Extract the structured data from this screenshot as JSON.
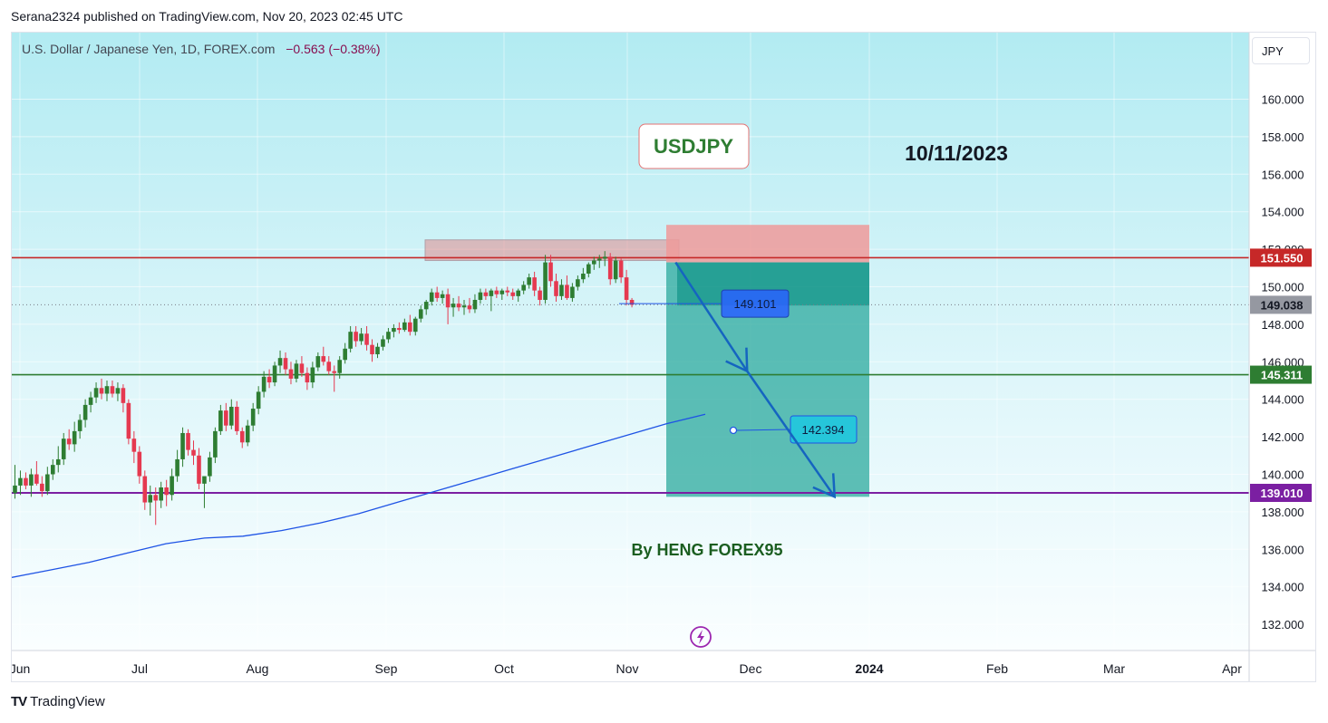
{
  "header": {
    "published_by": "Serana2324 published on TradingView.com, Nov 20, 2023 02:45 UTC"
  },
  "symbol": {
    "description": "U.S. Dollar / Japanese Yen, 1D, FOREX.com",
    "change": "−0.563 (−0.38%)"
  },
  "currency_button": "JPY",
  "footer": {
    "brand": "TradingView"
  },
  "colors": {
    "up_candle": "#2e7d32",
    "down_candle": "#e53950",
    "resistance": "#c62828",
    "support": "#2e7d32",
    "target": "#7b1fa2",
    "moving_average": "#1e53e5",
    "arrow": "#1565c0"
  },
  "chart_data": {
    "type": "candlestick",
    "timeframe": "1D",
    "y_axis_ticks": [
      "160.000",
      "158.000",
      "156.000",
      "154.000",
      "152.000",
      "150.000",
      "148.000",
      "146.000",
      "144.000",
      "142.000",
      "140.000",
      "138.000",
      "136.000",
      "134.000",
      "132.000"
    ],
    "ylim": [
      130.5,
      163.0
    ],
    "x_axis_ticks": [
      "Jun",
      "Jul",
      "Aug",
      "Sep",
      "Oct",
      "Nov",
      "Dec",
      "2024",
      "Feb",
      "Mar",
      "Apr"
    ],
    "candles": [
      {
        "o": 139.0,
        "h": 140.5,
        "l": 138.7,
        "c": 139.4
      },
      {
        "o": 139.4,
        "h": 140.2,
        "l": 138.9,
        "c": 139.8
      },
      {
        "o": 139.8,
        "h": 140.1,
        "l": 139.2,
        "c": 139.4
      },
      {
        "o": 139.4,
        "h": 140.3,
        "l": 138.8,
        "c": 140.0
      },
      {
        "o": 140.0,
        "h": 140.7,
        "l": 139.4,
        "c": 139.5
      },
      {
        "o": 139.5,
        "h": 139.9,
        "l": 138.8,
        "c": 139.1
      },
      {
        "o": 139.1,
        "h": 140.4,
        "l": 138.9,
        "c": 140.0
      },
      {
        "o": 140.0,
        "h": 140.8,
        "l": 139.7,
        "c": 140.5
      },
      {
        "o": 140.5,
        "h": 141.5,
        "l": 140.1,
        "c": 140.8
      },
      {
        "o": 140.8,
        "h": 142.2,
        "l": 140.5,
        "c": 141.9
      },
      {
        "o": 141.9,
        "h": 142.4,
        "l": 141.3,
        "c": 141.6
      },
      {
        "o": 141.6,
        "h": 142.8,
        "l": 141.2,
        "c": 142.3
      },
      {
        "o": 142.3,
        "h": 143.2,
        "l": 141.9,
        "c": 142.9
      },
      {
        "o": 142.9,
        "h": 144.0,
        "l": 142.5,
        "c": 143.7
      },
      {
        "o": 143.7,
        "h": 144.4,
        "l": 143.3,
        "c": 144.1
      },
      {
        "o": 144.1,
        "h": 144.9,
        "l": 143.8,
        "c": 144.6
      },
      {
        "o": 144.6,
        "h": 145.1,
        "l": 144.0,
        "c": 144.3
      },
      {
        "o": 144.3,
        "h": 145.0,
        "l": 143.9,
        "c": 144.7
      },
      {
        "o": 144.7,
        "h": 145.0,
        "l": 144.1,
        "c": 144.3
      },
      {
        "o": 144.3,
        "h": 144.9,
        "l": 143.9,
        "c": 144.6
      },
      {
        "o": 144.6,
        "h": 144.8,
        "l": 143.3,
        "c": 143.8
      },
      {
        "o": 143.8,
        "h": 144.0,
        "l": 141.6,
        "c": 141.9
      },
      {
        "o": 141.9,
        "h": 142.3,
        "l": 140.6,
        "c": 141.2
      },
      {
        "o": 141.2,
        "h": 141.5,
        "l": 139.5,
        "c": 139.9
      },
      {
        "o": 139.9,
        "h": 140.2,
        "l": 138.1,
        "c": 138.5
      },
      {
        "o": 138.5,
        "h": 139.4,
        "l": 137.8,
        "c": 138.9
      },
      {
        "o": 138.9,
        "h": 139.3,
        "l": 137.3,
        "c": 138.6
      },
      {
        "o": 138.6,
        "h": 139.6,
        "l": 138.2,
        "c": 139.3
      },
      {
        "o": 139.3,
        "h": 139.7,
        "l": 138.3,
        "c": 138.9
      },
      {
        "o": 138.9,
        "h": 140.3,
        "l": 138.6,
        "c": 139.9
      },
      {
        "o": 139.9,
        "h": 141.3,
        "l": 139.6,
        "c": 140.8
      },
      {
        "o": 140.8,
        "h": 142.5,
        "l": 140.4,
        "c": 142.2
      },
      {
        "o": 142.2,
        "h": 142.4,
        "l": 141.0,
        "c": 141.3
      },
      {
        "o": 141.3,
        "h": 141.8,
        "l": 140.5,
        "c": 141.0
      },
      {
        "o": 141.0,
        "h": 141.4,
        "l": 139.2,
        "c": 139.5
      },
      {
        "o": 139.5,
        "h": 139.8,
        "l": 138.2,
        "c": 139.9
      },
      {
        "o": 139.9,
        "h": 141.2,
        "l": 139.6,
        "c": 140.9
      },
      {
        "o": 140.9,
        "h": 142.5,
        "l": 140.6,
        "c": 142.3
      },
      {
        "o": 142.3,
        "h": 143.7,
        "l": 142.1,
        "c": 143.4
      },
      {
        "o": 143.4,
        "h": 143.8,
        "l": 142.3,
        "c": 142.6
      },
      {
        "o": 142.6,
        "h": 144.0,
        "l": 142.4,
        "c": 143.6
      },
      {
        "o": 143.6,
        "h": 143.9,
        "l": 142.1,
        "c": 142.3
      },
      {
        "o": 142.3,
        "h": 142.5,
        "l": 141.4,
        "c": 141.7
      },
      {
        "o": 141.7,
        "h": 142.9,
        "l": 141.5,
        "c": 142.6
      },
      {
        "o": 142.6,
        "h": 143.8,
        "l": 142.3,
        "c": 143.5
      },
      {
        "o": 143.5,
        "h": 144.7,
        "l": 143.2,
        "c": 144.4
      },
      {
        "o": 144.4,
        "h": 145.5,
        "l": 144.1,
        "c": 145.2
      },
      {
        "o": 145.2,
        "h": 145.6,
        "l": 144.6,
        "c": 144.9
      },
      {
        "o": 144.9,
        "h": 146.0,
        "l": 144.7,
        "c": 145.8
      },
      {
        "o": 145.8,
        "h": 146.6,
        "l": 145.4,
        "c": 146.2
      },
      {
        "o": 146.2,
        "h": 146.5,
        "l": 145.3,
        "c": 145.6
      },
      {
        "o": 145.6,
        "h": 146.0,
        "l": 144.8,
        "c": 145.1
      },
      {
        "o": 145.1,
        "h": 146.1,
        "l": 144.9,
        "c": 145.9
      },
      {
        "o": 145.9,
        "h": 146.3,
        "l": 145.2,
        "c": 145.4
      },
      {
        "o": 145.4,
        "h": 145.7,
        "l": 144.5,
        "c": 144.9
      },
      {
        "o": 144.9,
        "h": 146.0,
        "l": 144.6,
        "c": 145.7
      },
      {
        "o": 145.7,
        "h": 146.5,
        "l": 145.5,
        "c": 146.3
      },
      {
        "o": 146.3,
        "h": 146.8,
        "l": 145.8,
        "c": 146.0
      },
      {
        "o": 146.0,
        "h": 146.3,
        "l": 145.3,
        "c": 145.5
      },
      {
        "o": 145.5,
        "h": 145.8,
        "l": 144.4,
        "c": 145.4
      },
      {
        "o": 145.4,
        "h": 146.3,
        "l": 145.1,
        "c": 146.1
      },
      {
        "o": 146.1,
        "h": 147.0,
        "l": 145.9,
        "c": 146.7
      },
      {
        "o": 146.7,
        "h": 147.9,
        "l": 146.5,
        "c": 147.6
      },
      {
        "o": 147.6,
        "h": 147.9,
        "l": 146.8,
        "c": 147.1
      },
      {
        "o": 147.1,
        "h": 147.8,
        "l": 146.9,
        "c": 147.5
      },
      {
        "o": 147.5,
        "h": 147.9,
        "l": 146.6,
        "c": 146.9
      },
      {
        "o": 146.9,
        "h": 147.2,
        "l": 146.0,
        "c": 146.4
      },
      {
        "o": 146.4,
        "h": 147.0,
        "l": 146.2,
        "c": 146.8
      },
      {
        "o": 146.8,
        "h": 147.4,
        "l": 146.6,
        "c": 147.2
      },
      {
        "o": 147.2,
        "h": 147.8,
        "l": 147.0,
        "c": 147.6
      },
      {
        "o": 147.6,
        "h": 148.0,
        "l": 147.3,
        "c": 147.8
      },
      {
        "o": 147.8,
        "h": 148.1,
        "l": 147.5,
        "c": 147.7
      },
      {
        "o": 147.7,
        "h": 148.3,
        "l": 147.6,
        "c": 148.1
      },
      {
        "o": 148.1,
        "h": 148.5,
        "l": 147.4,
        "c": 147.6
      },
      {
        "o": 147.6,
        "h": 148.4,
        "l": 147.4,
        "c": 148.3
      },
      {
        "o": 148.3,
        "h": 149.0,
        "l": 148.1,
        "c": 148.8
      },
      {
        "o": 148.8,
        "h": 149.3,
        "l": 148.5,
        "c": 149.2
      },
      {
        "o": 149.2,
        "h": 149.9,
        "l": 149.0,
        "c": 149.7
      },
      {
        "o": 149.7,
        "h": 150.0,
        "l": 149.2,
        "c": 149.4
      },
      {
        "o": 149.4,
        "h": 149.8,
        "l": 149.1,
        "c": 149.6
      },
      {
        "o": 149.6,
        "h": 149.9,
        "l": 148.0,
        "c": 148.9
      },
      {
        "o": 148.9,
        "h": 149.4,
        "l": 148.4,
        "c": 149.1
      },
      {
        "o": 149.1,
        "h": 149.5,
        "l": 148.7,
        "c": 148.9
      },
      {
        "o": 148.9,
        "h": 149.3,
        "l": 148.5,
        "c": 149.0
      },
      {
        "o": 149.0,
        "h": 149.4,
        "l": 148.6,
        "c": 148.8
      },
      {
        "o": 148.8,
        "h": 149.6,
        "l": 148.6,
        "c": 149.3
      },
      {
        "o": 149.3,
        "h": 149.9,
        "l": 149.1,
        "c": 149.7
      },
      {
        "o": 149.7,
        "h": 149.9,
        "l": 149.3,
        "c": 149.5
      },
      {
        "o": 149.5,
        "h": 149.9,
        "l": 148.7,
        "c": 149.8
      },
      {
        "o": 149.8,
        "h": 150.0,
        "l": 149.4,
        "c": 149.6
      },
      {
        "o": 149.6,
        "h": 149.9,
        "l": 149.3,
        "c": 149.8
      },
      {
        "o": 149.8,
        "h": 150.0,
        "l": 149.5,
        "c": 149.7
      },
      {
        "o": 149.7,
        "h": 149.9,
        "l": 149.3,
        "c": 149.5
      },
      {
        "o": 149.5,
        "h": 149.9,
        "l": 149.2,
        "c": 149.8
      },
      {
        "o": 149.8,
        "h": 150.3,
        "l": 149.6,
        "c": 150.1
      },
      {
        "o": 150.1,
        "h": 150.7,
        "l": 149.9,
        "c": 150.5
      },
      {
        "o": 150.5,
        "h": 150.8,
        "l": 149.5,
        "c": 149.8
      },
      {
        "o": 149.8,
        "h": 150.0,
        "l": 149.0,
        "c": 149.3
      },
      {
        "o": 149.3,
        "h": 151.7,
        "l": 149.1,
        "c": 151.3
      },
      {
        "o": 151.3,
        "h": 151.7,
        "l": 150.0,
        "c": 150.3
      },
      {
        "o": 150.3,
        "h": 150.7,
        "l": 149.2,
        "c": 149.5
      },
      {
        "o": 149.5,
        "h": 150.4,
        "l": 149.3,
        "c": 150.1
      },
      {
        "o": 150.1,
        "h": 150.6,
        "l": 149.3,
        "c": 149.4
      },
      {
        "o": 149.4,
        "h": 150.2,
        "l": 149.2,
        "c": 150.0
      },
      {
        "o": 150.0,
        "h": 150.6,
        "l": 149.8,
        "c": 150.4
      },
      {
        "o": 150.4,
        "h": 151.0,
        "l": 150.2,
        "c": 150.7
      },
      {
        "o": 150.7,
        "h": 151.3,
        "l": 150.5,
        "c": 151.2
      },
      {
        "o": 151.2,
        "h": 151.6,
        "l": 150.9,
        "c": 151.4
      },
      {
        "o": 151.4,
        "h": 151.7,
        "l": 151.0,
        "c": 151.5
      },
      {
        "o": 151.5,
        "h": 151.9,
        "l": 151.1,
        "c": 151.6
      },
      {
        "o": 151.6,
        "h": 151.8,
        "l": 150.1,
        "c": 150.4
      },
      {
        "o": 150.4,
        "h": 151.6,
        "l": 150.2,
        "c": 151.4
      },
      {
        "o": 151.4,
        "h": 151.5,
        "l": 150.2,
        "c": 150.5
      },
      {
        "o": 150.5,
        "h": 150.9,
        "l": 149.0,
        "c": 149.3
      },
      {
        "o": 149.3,
        "h": 149.4,
        "l": 148.9,
        "c": 149.038
      }
    ],
    "moving_average": [
      134.5,
      134.9,
      135.3,
      135.8,
      136.3,
      136.6,
      136.7,
      137.0,
      137.4,
      137.9,
      138.5,
      139.1,
      139.7,
      140.3,
      140.9,
      141.5,
      142.1,
      142.7,
      143.2
    ],
    "horizontal_levels": [
      {
        "value": 151.55,
        "label": "151.550",
        "role": "resistance"
      },
      {
        "value": 145.311,
        "label": "145.311",
        "role": "support"
      },
      {
        "value": 139.01,
        "label": "139.010",
        "role": "target"
      }
    ],
    "current_price": {
      "value": 149.038,
      "label": "149.038"
    },
    "resistance_zone": {
      "from": 151.4,
      "to": 152.5
    },
    "short_position": {
      "stop": 153.3,
      "entry": 151.3,
      "target": 138.8
    },
    "price_labels": [
      {
        "text": "149.101",
        "value": 149.101
      },
      {
        "text": "142.394",
        "value": 142.394
      }
    ],
    "arrow_path": [
      {
        "date": "2023-11-11",
        "price": 151.3
      },
      {
        "date": "2023-11-29",
        "price": 145.5
      },
      {
        "date": "2023-12-21",
        "price": 138.8
      }
    ],
    "annotations": {
      "symbol_box": "USDJPY",
      "date_text": "10/11/2023",
      "author": "By HENG FOREX95"
    }
  }
}
